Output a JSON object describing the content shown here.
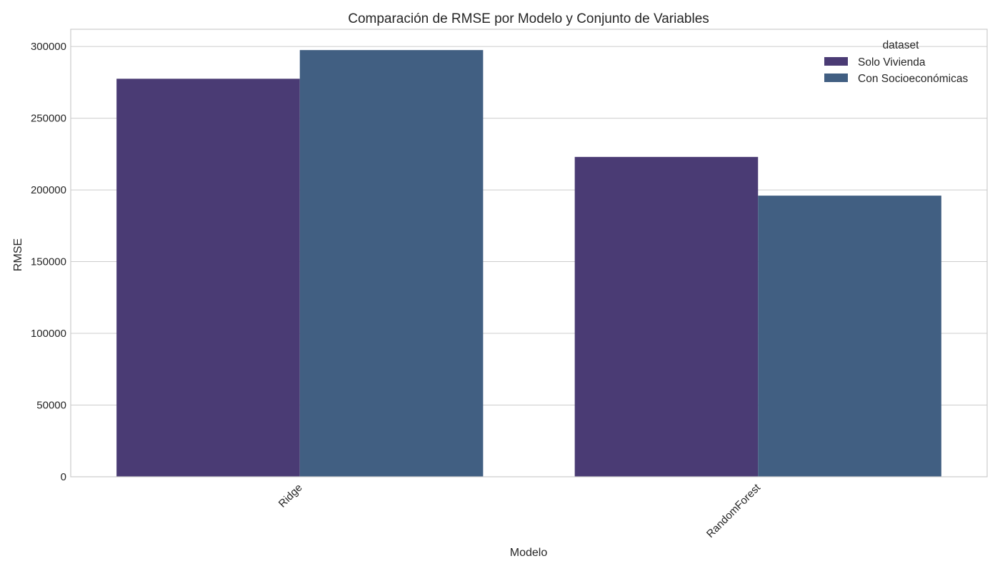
{
  "chart_data": {
    "type": "bar",
    "title": "Comparación de RMSE por Modelo y Conjunto de Variables",
    "xlabel": "Modelo",
    "ylabel": "RMSE",
    "categories": [
      "Ridge",
      "RandomForest"
    ],
    "series": [
      {
        "name": "Solo Vivienda",
        "color": "#4a3b74",
        "values": [
          277500,
          223000
        ]
      },
      {
        "name": "Con Socioeconómicas",
        "color": "#415f82",
        "values": [
          297500,
          196000
        ]
      }
    ],
    "ylim": [
      0,
      312000
    ],
    "yticks": [
      "0",
      "50000",
      "100000",
      "150000",
      "200000",
      "250000",
      "300000"
    ],
    "ytick_values": [
      0,
      50000,
      100000,
      150000,
      200000,
      250000,
      300000
    ],
    "legend": {
      "title": "dataset",
      "position": "top-right"
    },
    "grid": true,
    "xtick_rotation": "45deg"
  }
}
